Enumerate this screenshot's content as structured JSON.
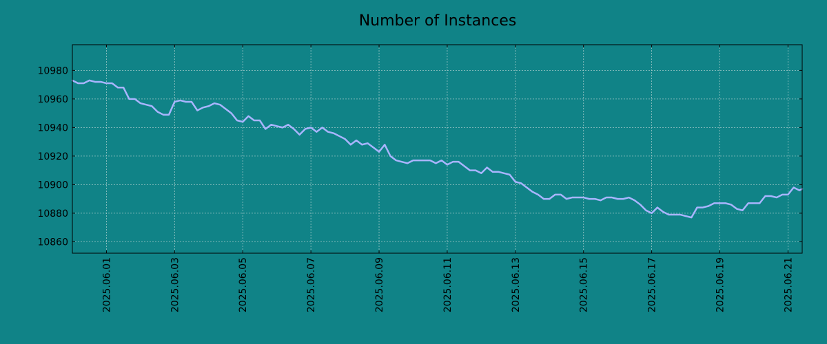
{
  "chart_data": {
    "type": "line",
    "title": "Number of Instances",
    "xlabel": "",
    "ylabel": "",
    "ylim": [
      10852,
      10998
    ],
    "xlim": [
      "2025-05-31T00:00",
      "2025-06-21T10:00"
    ],
    "grid": true,
    "colors": {
      "background": "#108387",
      "line": "#a9b5ff",
      "axes": "#000000",
      "grid": "#b9d3d3"
    },
    "y_ticks": [
      10860,
      10880,
      10900,
      10920,
      10940,
      10960,
      10980
    ],
    "y_tick_labels": [
      "10860",
      "10880",
      "10900",
      "10920",
      "10940",
      "10960",
      "10980"
    ],
    "x_ticks": [
      "2025-06-01",
      "2025-06-03",
      "2025-06-05",
      "2025-06-07",
      "2025-06-09",
      "2025-06-11",
      "2025-06-13",
      "2025-06-15",
      "2025-06-17",
      "2025-06-19",
      "2025-06-21"
    ],
    "x_tick_labels": [
      "2025.06.01",
      "2025.06.03",
      "2025.06.05",
      "2025.06.07",
      "2025.06.09",
      "2025.06.11",
      "2025.06.13",
      "2025.06.15",
      "2025.06.17",
      "2025.06.19",
      "2025.06.21"
    ],
    "series": [
      {
        "x": [
          "2025-05-31T00:00",
          "2025-05-31T04:00",
          "2025-05-31T08:00",
          "2025-05-31T12:00",
          "2025-05-31T16:00",
          "2025-05-31T20:00",
          "2025-06-01T00:00",
          "2025-06-01T04:00",
          "2025-06-01T08:00",
          "2025-06-01T12:00",
          "2025-06-01T16:00",
          "2025-06-01T20:00",
          "2025-06-02T00:00",
          "2025-06-02T04:00",
          "2025-06-02T08:00",
          "2025-06-02T12:00",
          "2025-06-02T16:00",
          "2025-06-02T20:00",
          "2025-06-03T00:00",
          "2025-06-03T04:00",
          "2025-06-03T08:00",
          "2025-06-03T12:00",
          "2025-06-03T16:00",
          "2025-06-03T20:00",
          "2025-06-04T00:00",
          "2025-06-04T04:00",
          "2025-06-04T08:00",
          "2025-06-04T12:00",
          "2025-06-04T16:00",
          "2025-06-04T20:00",
          "2025-06-05T00:00",
          "2025-06-05T04:00",
          "2025-06-05T08:00",
          "2025-06-05T12:00",
          "2025-06-05T16:00",
          "2025-06-05T20:00",
          "2025-06-06T00:00",
          "2025-06-06T04:00",
          "2025-06-06T08:00",
          "2025-06-06T12:00",
          "2025-06-06T16:00",
          "2025-06-06T20:00",
          "2025-06-07T00:00",
          "2025-06-07T04:00",
          "2025-06-07T08:00",
          "2025-06-07T12:00",
          "2025-06-07T16:00",
          "2025-06-07T20:00",
          "2025-06-08T00:00",
          "2025-06-08T04:00",
          "2025-06-08T08:00",
          "2025-06-08T12:00",
          "2025-06-08T16:00",
          "2025-06-08T20:00",
          "2025-06-09T00:00",
          "2025-06-09T04:00",
          "2025-06-09T08:00",
          "2025-06-09T12:00",
          "2025-06-09T16:00",
          "2025-06-09T20:00",
          "2025-06-10T00:00",
          "2025-06-10T04:00",
          "2025-06-10T08:00",
          "2025-06-10T12:00",
          "2025-06-10T16:00",
          "2025-06-10T20:00",
          "2025-06-11T00:00",
          "2025-06-11T04:00",
          "2025-06-11T08:00",
          "2025-06-11T12:00",
          "2025-06-11T16:00",
          "2025-06-11T20:00",
          "2025-06-12T00:00",
          "2025-06-12T04:00",
          "2025-06-12T08:00",
          "2025-06-12T12:00",
          "2025-06-12T16:00",
          "2025-06-12T20:00",
          "2025-06-13T00:00",
          "2025-06-13T04:00",
          "2025-06-13T08:00",
          "2025-06-13T12:00",
          "2025-06-13T16:00",
          "2025-06-13T20:00",
          "2025-06-14T00:00",
          "2025-06-14T04:00",
          "2025-06-14T08:00",
          "2025-06-14T12:00",
          "2025-06-14T16:00",
          "2025-06-14T20:00",
          "2025-06-15T00:00",
          "2025-06-15T04:00",
          "2025-06-15T08:00",
          "2025-06-15T12:00",
          "2025-06-15T16:00",
          "2025-06-15T20:00",
          "2025-06-16T00:00",
          "2025-06-16T04:00",
          "2025-06-16T08:00",
          "2025-06-16T12:00",
          "2025-06-16T16:00",
          "2025-06-16T20:00",
          "2025-06-17T00:00",
          "2025-06-17T04:00",
          "2025-06-17T08:00",
          "2025-06-17T12:00",
          "2025-06-17T16:00",
          "2025-06-17T20:00",
          "2025-06-18T00:00",
          "2025-06-18T04:00",
          "2025-06-18T08:00",
          "2025-06-18T12:00",
          "2025-06-18T16:00",
          "2025-06-18T20:00",
          "2025-06-19T00:00",
          "2025-06-19T04:00",
          "2025-06-19T08:00",
          "2025-06-19T12:00",
          "2025-06-19T16:00",
          "2025-06-19T20:00",
          "2025-06-20T00:00",
          "2025-06-20T04:00",
          "2025-06-20T08:00",
          "2025-06-20T12:00",
          "2025-06-20T16:00",
          "2025-06-20T20:00",
          "2025-06-21T00:00",
          "2025-06-21T04:00",
          "2025-06-21T08:00",
          "2025-06-21T10:00"
        ],
        "values": [
          10973,
          10971,
          10971,
          10973,
          10972,
          10972,
          10971,
          10971,
          10968,
          10968,
          10960,
          10960,
          10957,
          10956,
          10955,
          10951,
          10949,
          10949,
          10958,
          10959,
          10958,
          10958,
          10952,
          10954,
          10955,
          10957,
          10956,
          10953,
          10950,
          10945,
          10944,
          10948,
          10945,
          10945,
          10939,
          10942,
          10941,
          10940,
          10942,
          10939,
          10935,
          10939,
          10940,
          10937,
          10940,
          10937,
          10936,
          10934,
          10932,
          10928,
          10931,
          10928,
          10929,
          10926,
          10923,
          10928,
          10920,
          10917,
          10916,
          10915,
          10917,
          10917,
          10917,
          10917,
          10915,
          10917,
          10914,
          10916,
          10916,
          10913,
          10910,
          10910,
          10908,
          10912,
          10909,
          10909,
          10908,
          10907,
          10902,
          10901,
          10898,
          10895,
          10893,
          10890,
          10890,
          10893,
          10893,
          10890,
          10891,
          10891,
          10891,
          10890,
          10890,
          10889,
          10891,
          10891,
          10890,
          10890,
          10891,
          10889,
          10886,
          10882,
          10880,
          10884,
          10881,
          10879,
          10879,
          10879,
          10878,
          10877,
          10884,
          10884,
          10885,
          10887,
          10887,
          10887,
          10886,
          10883,
          10882,
          10887,
          10887,
          10887,
          10892,
          10892,
          10891,
          10893,
          10893,
          10898,
          10896,
          10897
        ]
      }
    ]
  }
}
